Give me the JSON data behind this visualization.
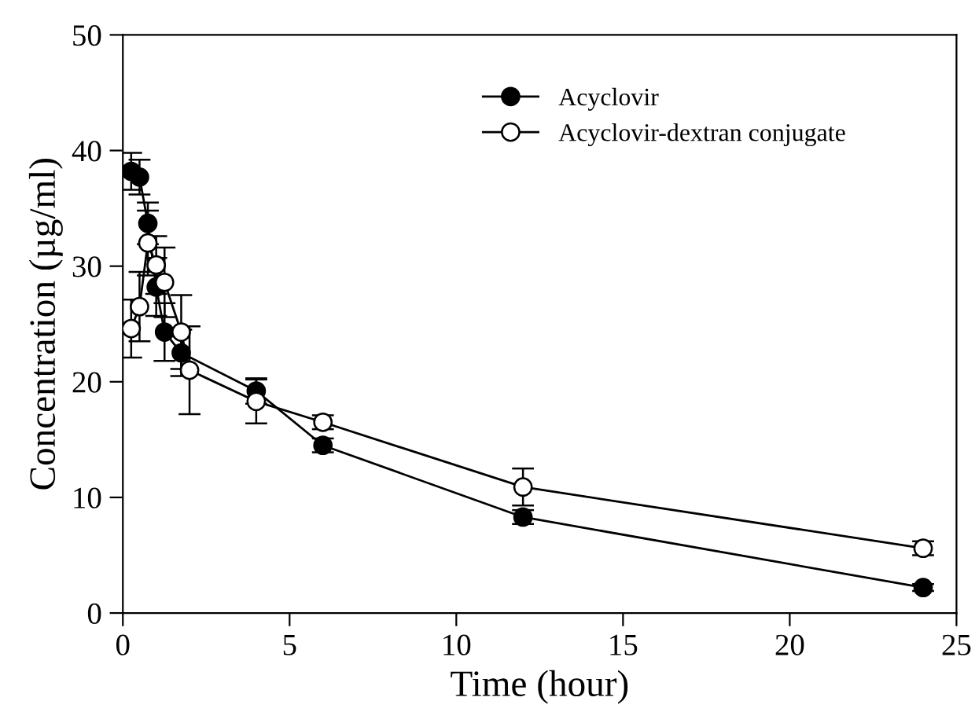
{
  "chart_data": {
    "type": "line",
    "xlabel": "Time (hour)",
    "ylabel": "Concentration (µg/ml)",
    "xlim": [
      0,
      25
    ],
    "ylim": [
      0,
      50
    ],
    "xticks": [
      0,
      5,
      10,
      15,
      20,
      25
    ],
    "yticks": [
      0,
      10,
      20,
      30,
      40,
      50
    ],
    "grid": false,
    "legend": "top right",
    "line_style": "solid",
    "series": [
      {
        "name": "Acyclovir",
        "color": "#000000",
        "marker": "circle",
        "x": [
          0.25,
          0.5,
          0.75,
          1,
          1.25,
          1.75,
          4,
          6,
          12,
          24
        ],
        "values": [
          38.2,
          37.7,
          33.7,
          28.2,
          24.3,
          22.5,
          19.2,
          14.5,
          8.3,
          2.2
        ],
        "errors": [
          1.6,
          1.5,
          1.8,
          2.5,
          2.5,
          2.0,
          1.1,
          0.6,
          0.6,
          0.3
        ]
      },
      {
        "name": "Acyclovir-dextran conjugate",
        "color": "#ffffff",
        "marker": "circle",
        "x": [
          0.25,
          0.5,
          0.75,
          1,
          1.25,
          1.75,
          2,
          4,
          6,
          12,
          24
        ],
        "values": [
          24.6,
          26.5,
          32.0,
          30.1,
          28.6,
          24.3,
          21.0,
          18.3,
          16.5,
          10.9,
          5.6
        ],
        "errors": [
          2.5,
          3.0,
          2.8,
          2.5,
          3.0,
          3.2,
          3.8,
          1.9,
          0.6,
          1.6,
          0.6
        ]
      }
    ]
  }
}
